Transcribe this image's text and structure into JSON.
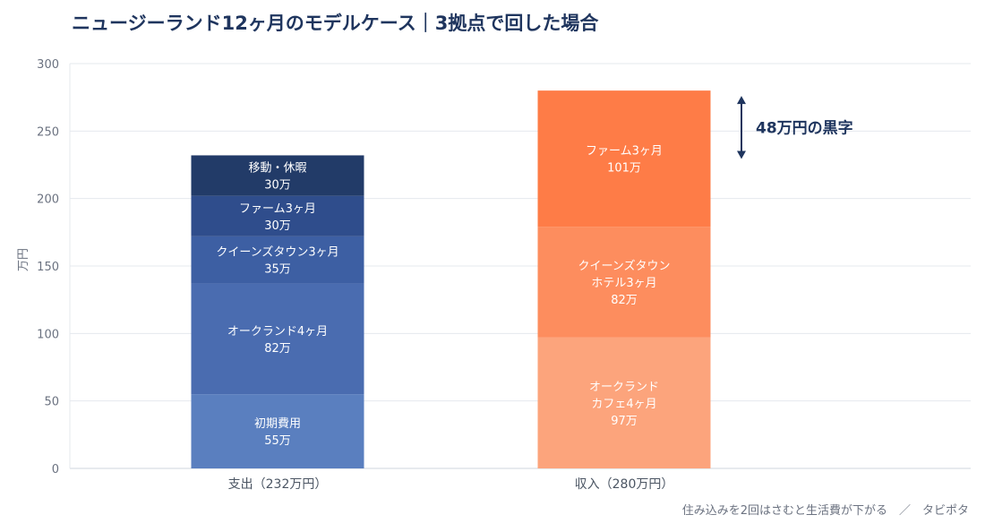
{
  "chart_data": {
    "type": "bar",
    "stacked": true,
    "title": "ニュージーランド12ヶ月のモデルケース｜3拠点で回した場合",
    "ylabel": "万円",
    "xlabel": "",
    "ylim": [
      0,
      300
    ],
    "yticks": [
      0,
      50,
      100,
      150,
      200,
      250,
      300
    ],
    "grid": true,
    "categories": [
      "支出（232万円）",
      "収入（280万円）"
    ],
    "bars": [
      {
        "category": "支出（232万円）",
        "segments": [
          {
            "label": "初期費用",
            "value": 55,
            "value_label": "55万",
            "color": "#5a7fbf"
          },
          {
            "label": "オークランド4ヶ月",
            "value": 82,
            "value_label": "82万",
            "color": "#4a6cb0"
          },
          {
            "label": "クイーンズタウン3ヶ月",
            "value": 35,
            "value_label": "35万",
            "color": "#3d5fa3"
          },
          {
            "label": "ファーム3ヶ月",
            "value": 30,
            "value_label": "30万",
            "color": "#2f4d8c"
          },
          {
            "label": "移動・休暇",
            "value": 30,
            "value_label": "30万",
            "color": "#223b68"
          }
        ]
      },
      {
        "category": "収入（280万円）",
        "segments": [
          {
            "label": "オークランド\nカフェ4ヶ月",
            "value": 97,
            "value_label": "97万",
            "color": "#fca47c"
          },
          {
            "label": "クイーンズタウン\nホテル3ヶ月",
            "value": 82,
            "value_label": "82万",
            "color": "#fd8d5e"
          },
          {
            "label": "ファーム3ヶ月",
            "value": 101,
            "value_label": "101万",
            "color": "#fe7c47"
          }
        ]
      }
    ],
    "annotation": {
      "text": "48万円の黒字",
      "from": 232,
      "to": 280,
      "color": "#1f355e"
    },
    "source": "住み込みを2回はさむと生活費が下がる　／　タビポタ"
  }
}
